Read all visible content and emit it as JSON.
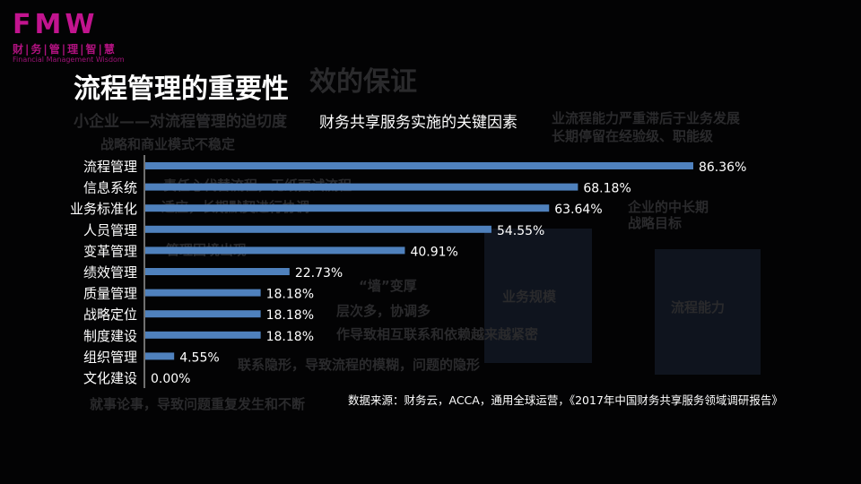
{
  "logo": {
    "mark": "FMW",
    "cn": "财|务|管|理|智|慧",
    "en": "Financial Management Wisdom"
  },
  "slide_title": "流程管理的重要性",
  "background_text": {
    "title_suffix": "效的保证",
    "subtitle_left": "小企业——对流程管理的迫切度",
    "subtitle_right_1": "业流程能力严重滞后于业务发展",
    "subtitle_right_2": "长期停留在经验级、职能级",
    "bullets": [
      "战略和商业模式不稳定",
      "责任心代替流程，无纸面试流程",
      "适应，长期默契进行协调",
      "管理困境出现",
      "“墙”变厚",
      "层次多，协调多",
      "作导致相互联系和依赖越来越紧密",
      "联系隐形，导致流程的模糊，问题的隐形",
      "就事论事，导致问题重复发生和不断"
    ],
    "house_top": "企业的中长期战略目标",
    "house_left": "业务规模",
    "house_right": "流程能力"
  },
  "chart_data": {
    "type": "bar",
    "orientation": "horizontal",
    "title": "财务共享服务实施的关键因素",
    "categories": [
      "流程管理",
      "信息系统",
      "业务标准化",
      "人员管理",
      "变革管理",
      "绩效管理",
      "质量管理",
      "战略定位",
      "制度建设",
      "组织管理",
      "文化建设"
    ],
    "values": [
      86.36,
      68.18,
      63.64,
      54.55,
      40.91,
      22.73,
      18.18,
      18.18,
      18.18,
      4.55,
      0.0
    ],
    "data_labels": [
      "86.36%",
      "68.18%",
      "63.64%",
      "54.55%",
      "40.91%",
      "22.73%",
      "18.18%",
      "18.18%",
      "18.18%",
      "4.55%",
      "0.00%"
    ],
    "xlim": [
      0,
      100
    ],
    "grid": false,
    "bar_color": "#4f81bd"
  },
  "source": "数据来源：财务云，ACCA，通用全球运营，《2017年中国财务共享服务领域调研报告》"
}
